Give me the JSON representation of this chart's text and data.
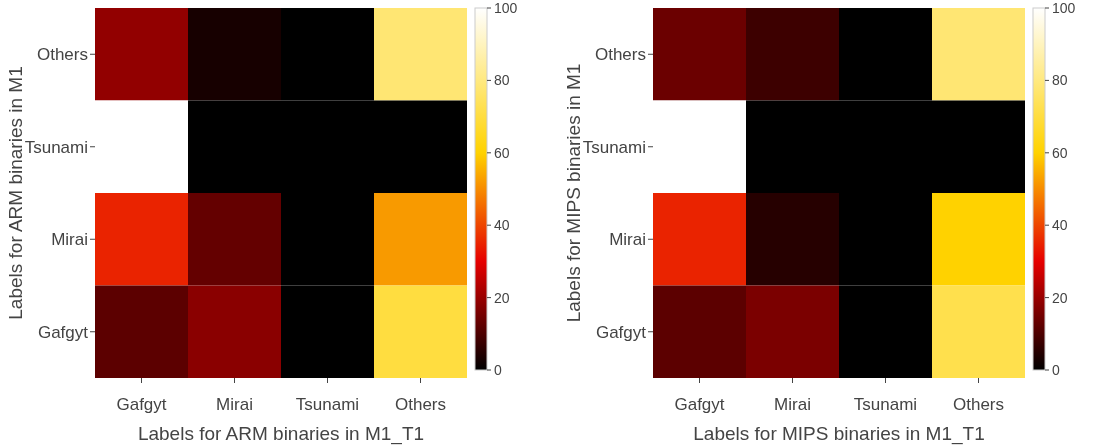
{
  "chart_data": [
    {
      "type": "heatmap",
      "xlabel": "Labels for ARM binaries in M1_T1",
      "ylabel": "Labels for ARM binaries in M1",
      "categories": [
        "Gafgyt",
        "Mirai",
        "Tsunami",
        "Others"
      ],
      "y_categories": [
        "Others",
        "Tsunami",
        "Mirai",
        "Gafgyt"
      ],
      "cells": [
        [
          19,
          3,
          0,
          78
        ],
        [
          100,
          0,
          0,
          0
        ],
        [
          35,
          13,
          0,
          52
        ],
        [
          12,
          18,
          0,
          70
        ]
      ],
      "clim": [
        0,
        100
      ],
      "cticks": [
        0,
        20,
        40,
        60,
        80,
        100
      ]
    },
    {
      "type": "heatmap",
      "xlabel": "Labels for MIPS binaries in M1_T1",
      "ylabel": "Labels for MIPS binaries in M1",
      "categories": [
        "Gafgyt",
        "Mirai",
        "Tsunami",
        "Others"
      ],
      "y_categories": [
        "Others",
        "Tsunami",
        "Mirai",
        "Gafgyt"
      ],
      "cells": [
        [
          14,
          8,
          0,
          78
        ],
        [
          100,
          0,
          0,
          0
        ],
        [
          35,
          5,
          0,
          60
        ],
        [
          12,
          16,
          0,
          72
        ]
      ],
      "clim": [
        0,
        100
      ],
      "cticks": [
        0,
        20,
        40,
        60,
        80,
        100
      ]
    }
  ]
}
